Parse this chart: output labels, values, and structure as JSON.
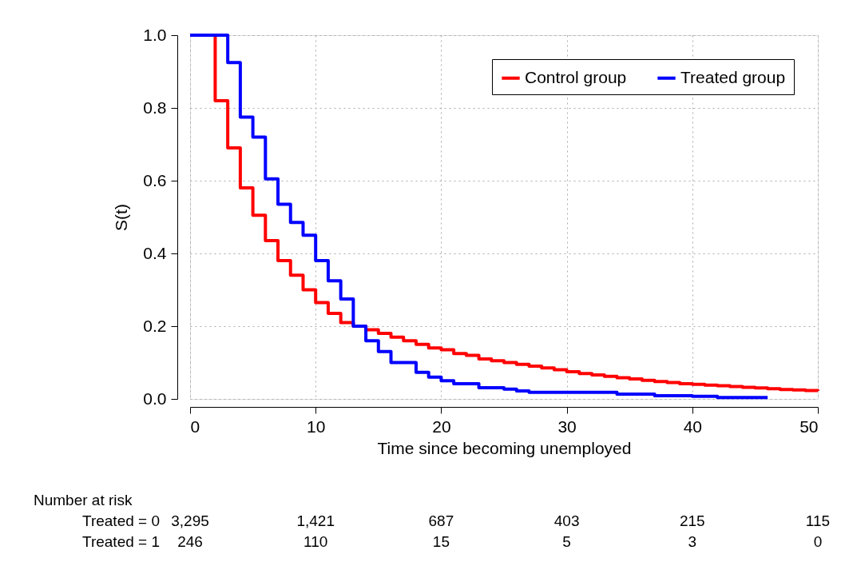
{
  "chart_data": {
    "type": "step",
    "xlabel": "Time since becoming unemployed",
    "ylabel": "S(t)",
    "xlim": [
      0,
      50
    ],
    "xticks": [
      0,
      10,
      20,
      30,
      40,
      50
    ],
    "ylim": [
      0,
      1
    ],
    "yticks": [
      {
        "value": 0,
        "label": "0.0"
      },
      {
        "value": 0.2,
        "label": "0.2"
      },
      {
        "value": 0.4,
        "label": "0.4"
      },
      {
        "value": 0.6,
        "label": "0.6"
      },
      {
        "value": 0.8,
        "label": "0.8"
      },
      {
        "value": 1,
        "label": "1.0"
      }
    ],
    "grid": true,
    "legend": "top right",
    "line_style": "solid",
    "marker": "none",
    "series": [
      {
        "name": "Control group",
        "color": "#ff0000",
        "x": [
          0,
          2,
          3,
          4,
          5,
          6,
          7,
          8,
          9,
          10,
          11,
          12,
          13,
          14,
          15,
          16,
          17,
          18,
          19,
          20,
          21,
          22,
          23,
          24,
          25,
          26,
          27,
          28,
          29,
          30,
          31,
          32,
          33,
          34,
          35,
          36,
          37,
          38,
          39,
          40,
          41,
          42,
          43,
          44,
          45,
          46,
          47,
          48,
          49,
          50
        ],
        "values": [
          1.0,
          0.82,
          0.69,
          0.58,
          0.505,
          0.435,
          0.38,
          0.34,
          0.3,
          0.265,
          0.235,
          0.21,
          0.2,
          0.19,
          0.18,
          0.17,
          0.16,
          0.15,
          0.14,
          0.135,
          0.125,
          0.12,
          0.11,
          0.105,
          0.1,
          0.095,
          0.09,
          0.085,
          0.08,
          0.075,
          0.07,
          0.066,
          0.062,
          0.058,
          0.055,
          0.051,
          0.048,
          0.045,
          0.042,
          0.04,
          0.038,
          0.036,
          0.034,
          0.032,
          0.03,
          0.028,
          0.026,
          0.025,
          0.023,
          0.022
        ]
      },
      {
        "name": "Treated group",
        "color": "#0000ff",
        "x": [
          0,
          3,
          4,
          5,
          6,
          7,
          8,
          9,
          10,
          11,
          12,
          13,
          14,
          15,
          16,
          18,
          19,
          20,
          21,
          23,
          25,
          26,
          27,
          34,
          37,
          40,
          42,
          46
        ],
        "values": [
          1.0,
          0.925,
          0.775,
          0.72,
          0.605,
          0.535,
          0.485,
          0.45,
          0.38,
          0.325,
          0.275,
          0.2,
          0.16,
          0.13,
          0.1,
          0.073,
          0.06,
          0.05,
          0.042,
          0.031,
          0.027,
          0.022,
          0.018,
          0.013,
          0.009,
          0.007,
          0.004,
          0.004
        ]
      }
    ],
    "annotations": [
      "Number at risk",
      "Treated = 0",
      "3,295",
      "1,421",
      "687",
      "403",
      "215",
      "115",
      "Treated = 1",
      "246",
      "110",
      "15",
      "5",
      "3",
      "0"
    ]
  }
}
